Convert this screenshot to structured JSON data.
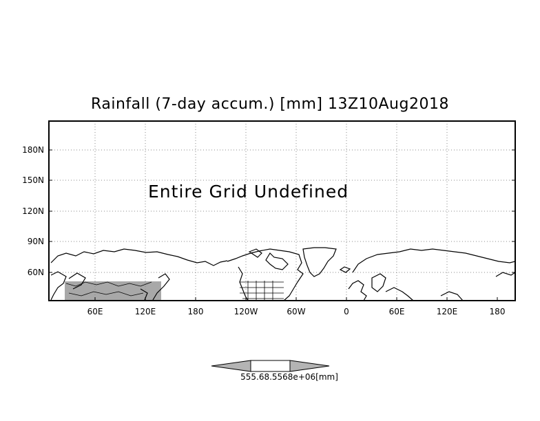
{
  "title": "Rainfall (7-day accum.) [mm] 13Z10Aug2018",
  "annotation": "Entire Grid Undefined",
  "axes": {
    "x_ticks": [
      "60E",
      "120E",
      "180",
      "120W",
      "60W",
      "0",
      "60E",
      "120E",
      "180"
    ],
    "y_ticks": [
      "180N",
      "150N",
      "120N",
      "90N",
      "60N"
    ]
  },
  "colorbar": {
    "label": "555.68.5568e+06[mm]",
    "left_color": "#b4b4b4",
    "middle_color": "#ffffff",
    "right_color": "#b4b4b4"
  },
  "shaded_region_color": "#a8a8a8",
  "grid": true
}
